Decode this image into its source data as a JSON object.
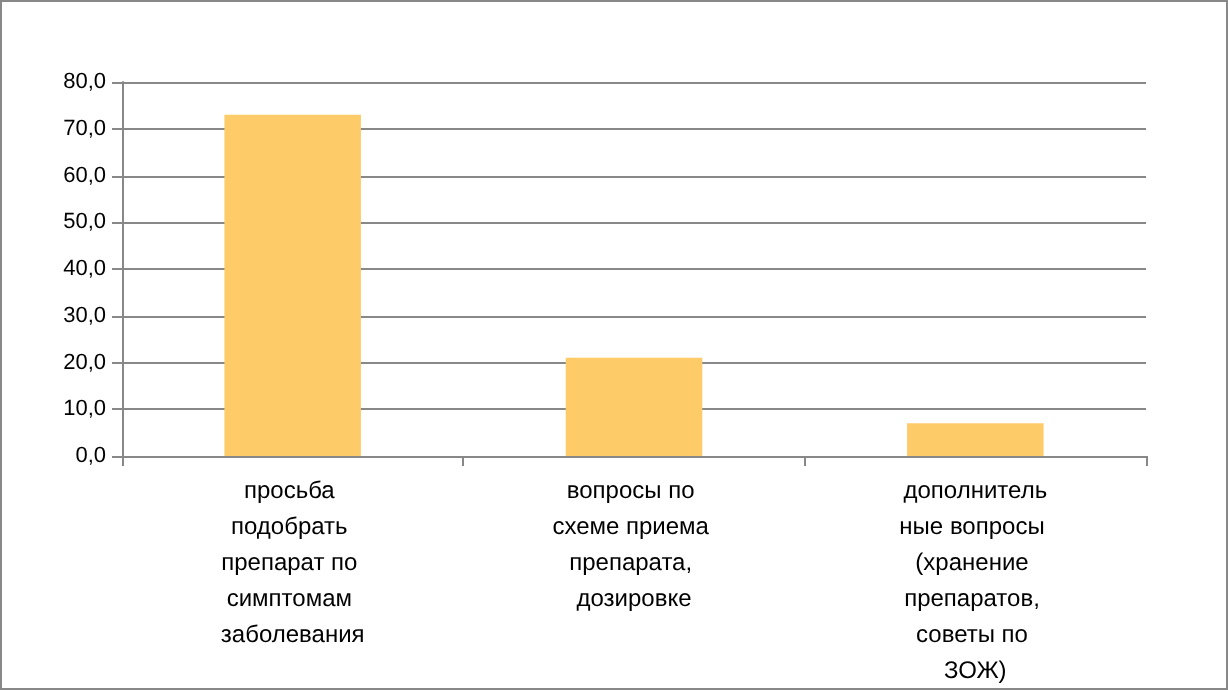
{
  "chart_data": {
    "type": "bar",
    "categories": [
      "просьба подобрать препарат по симптомам заболевания",
      "вопросы по схеме приема препарата, дозировке",
      "дополнительные вопросы (хранение препаратов, советы по ЗОЖ)"
    ],
    "values": [
      73,
      21,
      7
    ],
    "color": "#fdcb68",
    "ylim": [
      0,
      80
    ],
    "yticks": [
      {
        "value": 0,
        "label": "0,0"
      },
      {
        "value": 10,
        "label": "10,0"
      },
      {
        "value": 20,
        "label": "20,0"
      },
      {
        "value": 30,
        "label": "30,0"
      },
      {
        "value": 40,
        "label": "40,0"
      },
      {
        "value": 50,
        "label": "50,0"
      },
      {
        "value": 60,
        "label": "60,0"
      },
      {
        "value": 70,
        "label": "70,0"
      },
      {
        "value": 80,
        "label": "80,0"
      }
    ],
    "grid": true
  }
}
